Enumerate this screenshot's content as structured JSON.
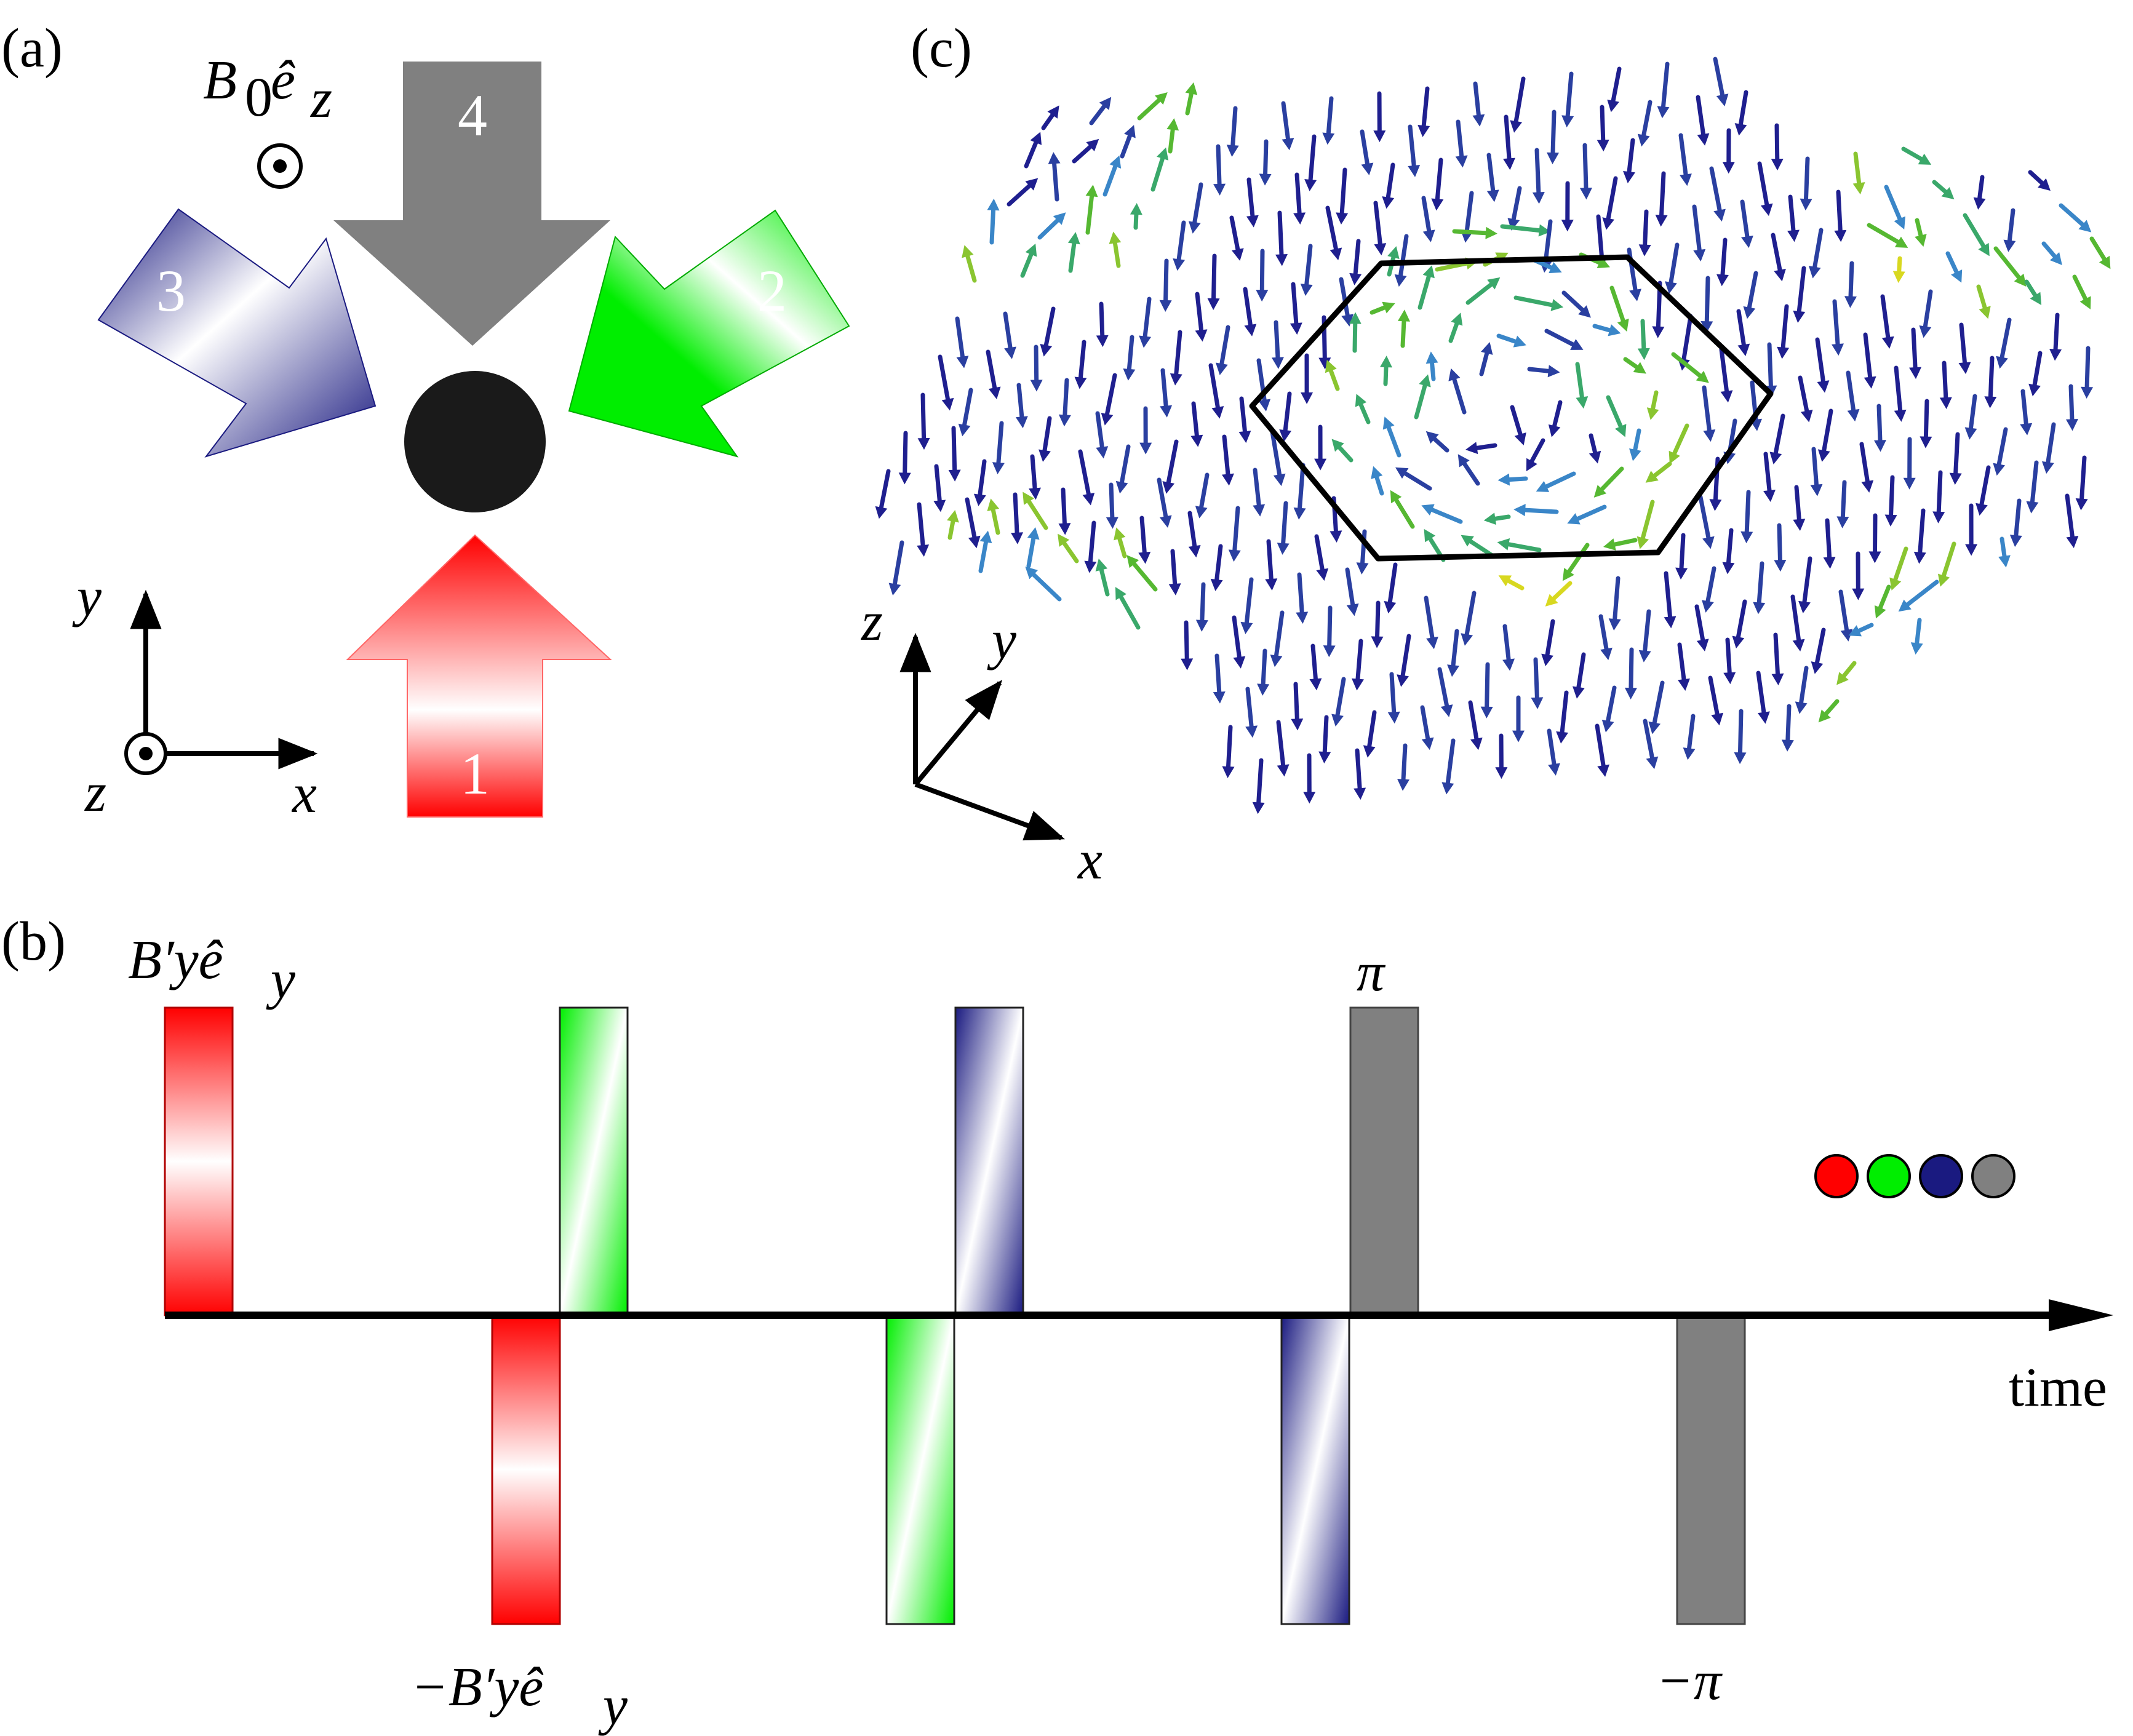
{
  "panel_a": {
    "label": "(a)",
    "field_label": "B",
    "field_sub": "0",
    "field_hat": "ê",
    "field_hat_sub": "z",
    "beams": [
      {
        "number": "1",
        "color": "#ff0000"
      },
      {
        "number": "2",
        "color": "#00ee00"
      },
      {
        "number": "3",
        "color": "#1a1a80"
      },
      {
        "number": "4",
        "color": "#808080"
      }
    ],
    "axes": {
      "x": "x",
      "y": "y",
      "z": "z"
    }
  },
  "panel_b": {
    "label": "(b)",
    "top_left_label": "B′yê",
    "top_left_sub": "y",
    "bottom_label": "−B′yê",
    "bottom_sub": "y",
    "pi_label": "π",
    "neg_pi_label": "−π",
    "time_label": "time",
    "pulse_sequence": [
      "red+",
      "red-",
      "green+",
      "green-",
      "blue+",
      "blue-",
      "gray+",
      "gray-"
    ],
    "legend_colors": [
      "#ff0000",
      "#00ee00",
      "#1a1a80",
      "#808080"
    ]
  },
  "panel_c": {
    "label": "(c)",
    "axes": {
      "x": "x",
      "y": "y",
      "z": "z"
    }
  },
  "colors": {
    "red": "#ff0000",
    "green": "#00ee00",
    "blue": "#1a1a80",
    "gray": "#808080",
    "black": "#000000"
  }
}
